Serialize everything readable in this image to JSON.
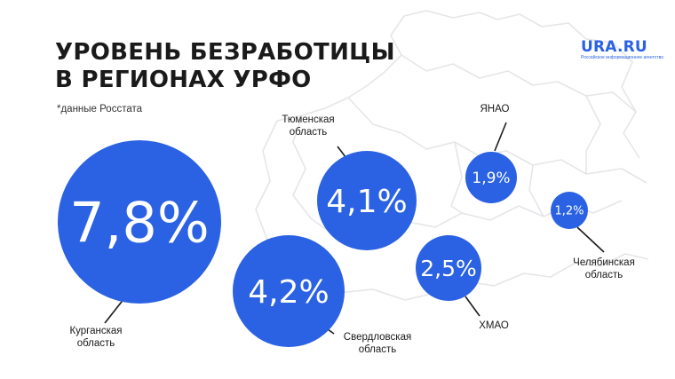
{
  "title_line1": "УРОВЕНЬ БЕЗРАБОТИЦЫ",
  "title_line2": "В РЕГИОНАХ УРФО",
  "source_note": "*данные Росстата",
  "brand": {
    "name": "URA.RU",
    "tagline": "Российское информационное агентство"
  },
  "colors": {
    "bubble": "#2a62e3",
    "map_lines": "#e4e4e7"
  },
  "chart_data": {
    "type": "bubble",
    "title": "УРОВЕНЬ БЕЗРАБОТИЦЫ В РЕГИОНАХ УРФО",
    "unit": "%",
    "series": [
      {
        "key": "kurgan",
        "label_lines": [
          "Курганская",
          "область"
        ],
        "value": 7.8,
        "value_label": "7,8%"
      },
      {
        "key": "sverdlovsk",
        "label_lines": [
          "Свердловская",
          "область"
        ],
        "value": 4.2,
        "value_label": "4,2%"
      },
      {
        "key": "tyumen",
        "label_lines": [
          "Тюменская",
          "область"
        ],
        "value": 4.1,
        "value_label": "4,1%"
      },
      {
        "key": "khmao",
        "label_lines": [
          "ХМАО"
        ],
        "value": 2.5,
        "value_label": "2,5%"
      },
      {
        "key": "yanao",
        "label_lines": [
          "ЯНАО"
        ],
        "value": 1.9,
        "value_label": "1,9%"
      },
      {
        "key": "chelyabinsk",
        "label_lines": [
          "Челябинская",
          "область"
        ],
        "value": 1.2,
        "value_label": "1,2%"
      }
    ]
  }
}
